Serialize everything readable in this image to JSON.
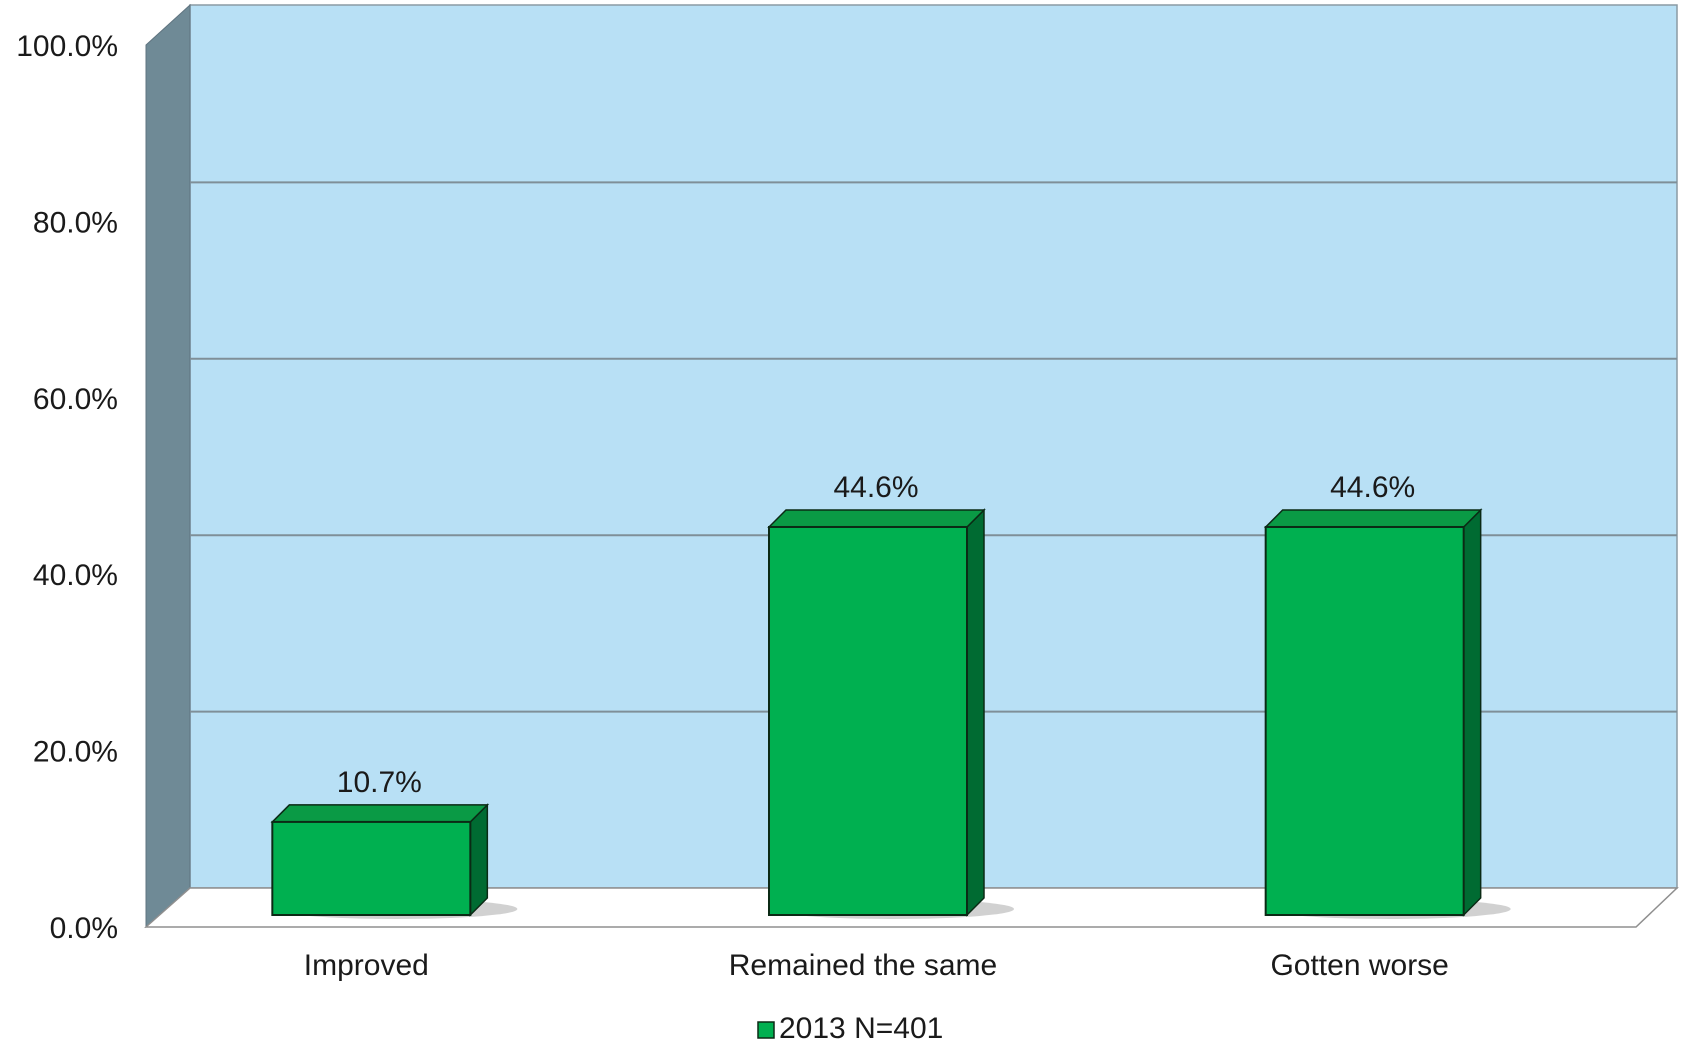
{
  "chart_data": {
    "type": "bar",
    "categories": [
      "Improved",
      "Remained the same",
      "Gotten worse"
    ],
    "series": [
      {
        "name": "2013 N=401",
        "values": [
          10.7,
          44.6,
          44.6
        ],
        "color": "#00b050"
      }
    ],
    "data_labels": [
      "10.7%",
      "44.6%",
      "44.6%"
    ],
    "y_ticks": [
      "0.0%",
      "20.0%",
      "40.0%",
      "60.0%",
      "80.0%",
      "100.0%"
    ],
    "ylim": [
      0,
      100
    ],
    "grid": true,
    "legend": {
      "position": "bottom",
      "label": "2013 N=401"
    },
    "style": {
      "plot_background": "#b8e0f5",
      "side_wall": "#6f8a96",
      "floor": "#ffffff",
      "bar_front": "#00b050",
      "bar_top": "#0a9a45",
      "bar_side": "#006b32",
      "gridline": "#7f8f98"
    }
  }
}
